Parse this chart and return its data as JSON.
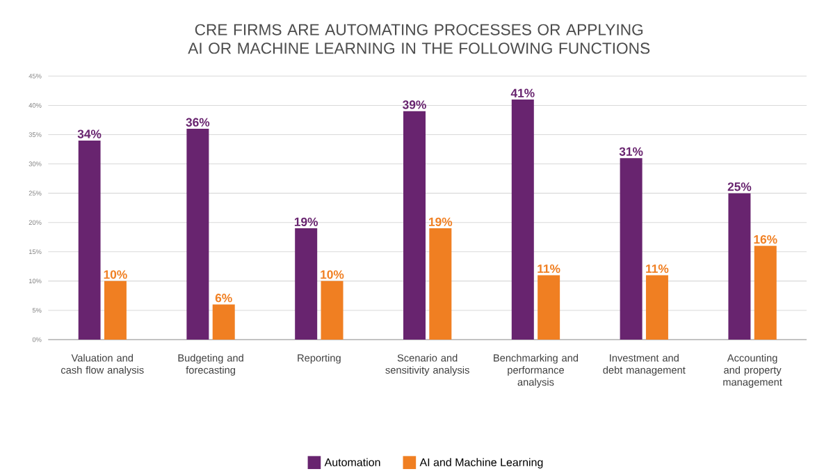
{
  "chart_data": {
    "type": "bar",
    "title": "CRE FIRMS ARE AUTOMATING PROCESSES OR APPLYING AI OR MACHINE LEARNING IN THE FOLLOWING FUNCTIONS",
    "categories": [
      "Valuation and cash flow analysis",
      "Budgeting and forecasting",
      "Reporting",
      "Scenario and sensitivity analysis",
      "Benchmarking and performance analysis",
      "Investment and debt management",
      "Accounting and property management"
    ],
    "series": [
      {
        "name": "Automation",
        "color": "#68246f",
        "values": [
          34,
          36,
          19,
          39,
          41,
          31,
          25
        ],
        "value_labels": [
          "34%",
          "36%",
          "19%",
          "39%",
          "41%",
          "31%",
          "25%"
        ]
      },
      {
        "name": "AI and Machine Learning",
        "color": "#f07f22",
        "values": [
          10,
          6,
          10,
          19,
          11,
          11,
          16
        ],
        "value_labels": [
          "10%",
          "6%",
          "10%",
          "19%",
          "11%",
          "11%",
          "16%"
        ]
      }
    ],
    "ylim": [
      0,
      45
    ],
    "yticks": [
      {
        "value": 0,
        "label": "0%"
      },
      {
        "value": 5,
        "label": "5%"
      },
      {
        "value": 10,
        "label": "10%"
      },
      {
        "value": 15,
        "label": "15%"
      },
      {
        "value": 20,
        "label": "20%"
      },
      {
        "value": 25,
        "label": "25%"
      },
      {
        "value": 30,
        "label": "30%"
      },
      {
        "value": 35,
        "label": "35%"
      },
      {
        "value": 40,
        "label": "40%"
      },
      {
        "value": 45,
        "label": "45%"
      }
    ],
    "grid": "y",
    "legend": "bottom"
  }
}
